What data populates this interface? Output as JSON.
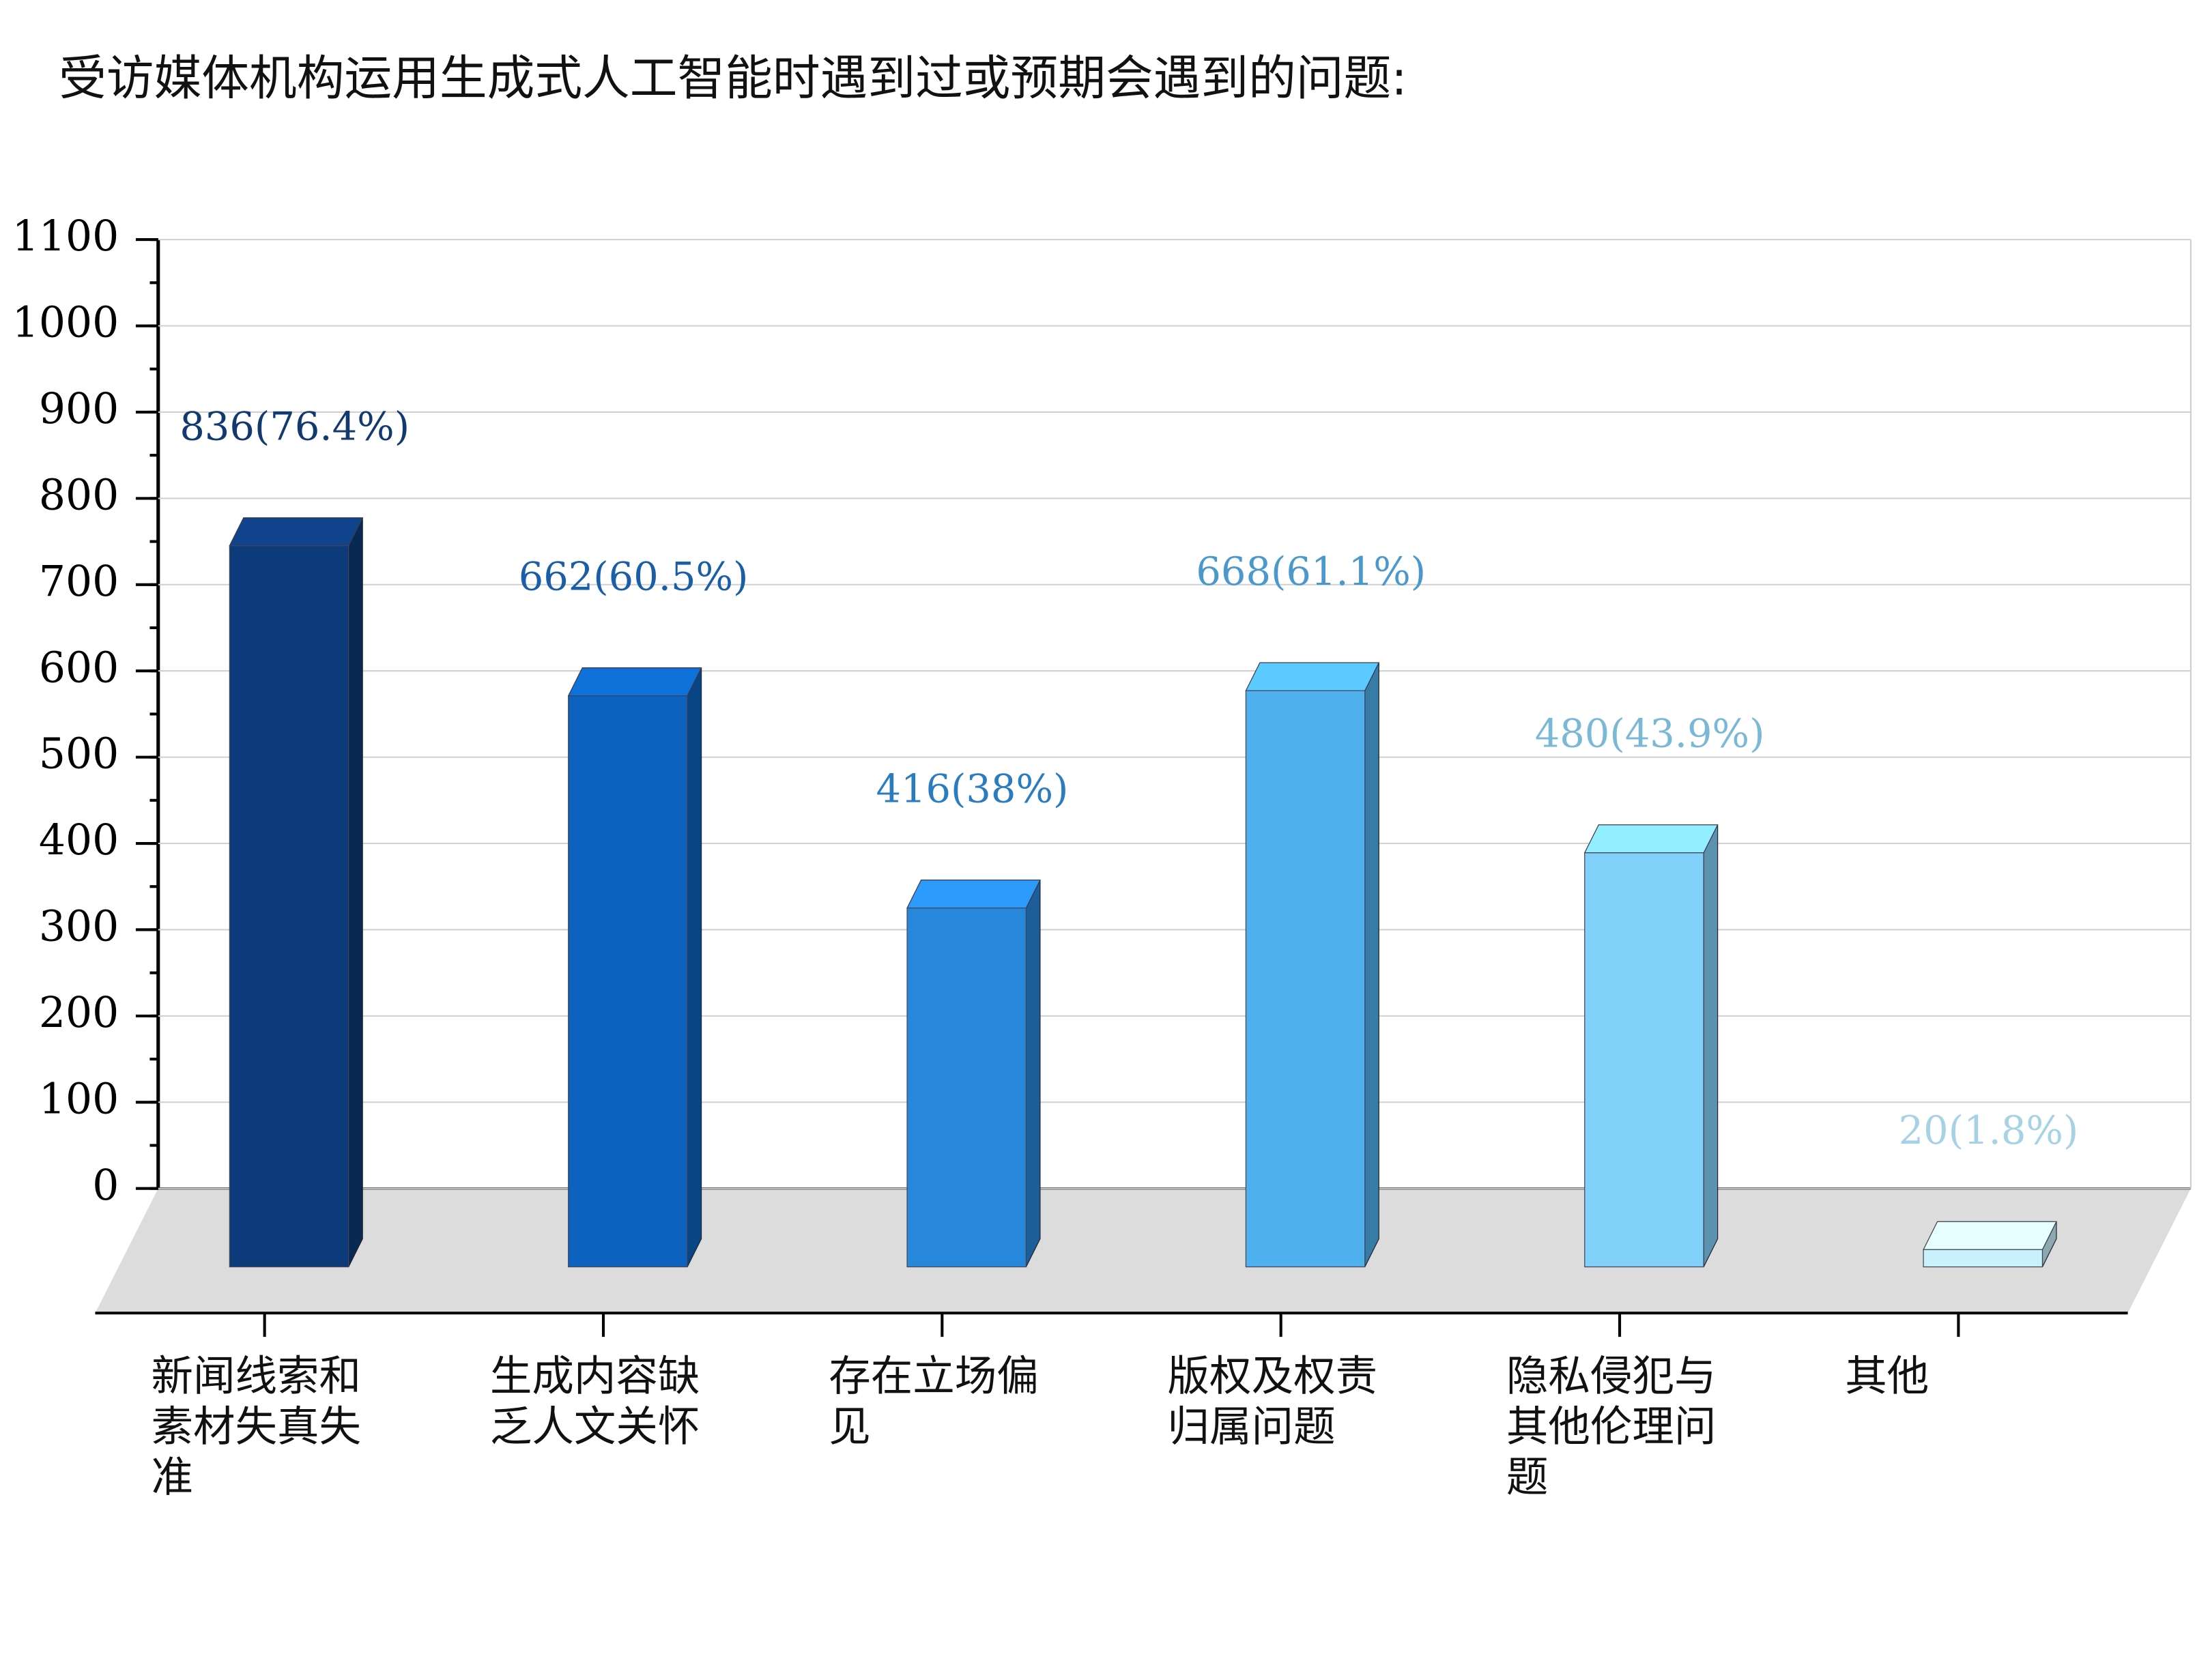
{
  "chart_data": {
    "type": "bar3d",
    "title": "受访媒体机构运用生成式人工智能时遇到过或预期会遇到的问题:",
    "categories": [
      "新闻线索和素材失真失准",
      "生成内容缺乏人文关怀",
      "存在立场偏见",
      "版权及权责归属问题",
      "隐私侵犯与其他伦理问题",
      "其他"
    ],
    "values": [
      836,
      662,
      416,
      668,
      480,
      20
    ],
    "value_labels": [
      "836(76.4%)",
      "662(60.5%)",
      "416(38%)",
      "668(61.1%)",
      "480(43.9%)",
      "20(1.8%)"
    ],
    "colors": [
      "#0d3a7a",
      "#0c62be",
      "#2687db",
      "#4fb0ee",
      "#80d0fa",
      "#c8f2fc"
    ],
    "label_colors": [
      "#123a70",
      "#1a5ea8",
      "#2a7cc0",
      "#4a98cc",
      "#7ab8d8",
      "#a6d2e6"
    ],
    "ylim": [
      0,
      1100
    ],
    "yticks": [
      0,
      100,
      200,
      300,
      400,
      500,
      600,
      700,
      800,
      900,
      1000,
      1100
    ],
    "grid": true
  }
}
